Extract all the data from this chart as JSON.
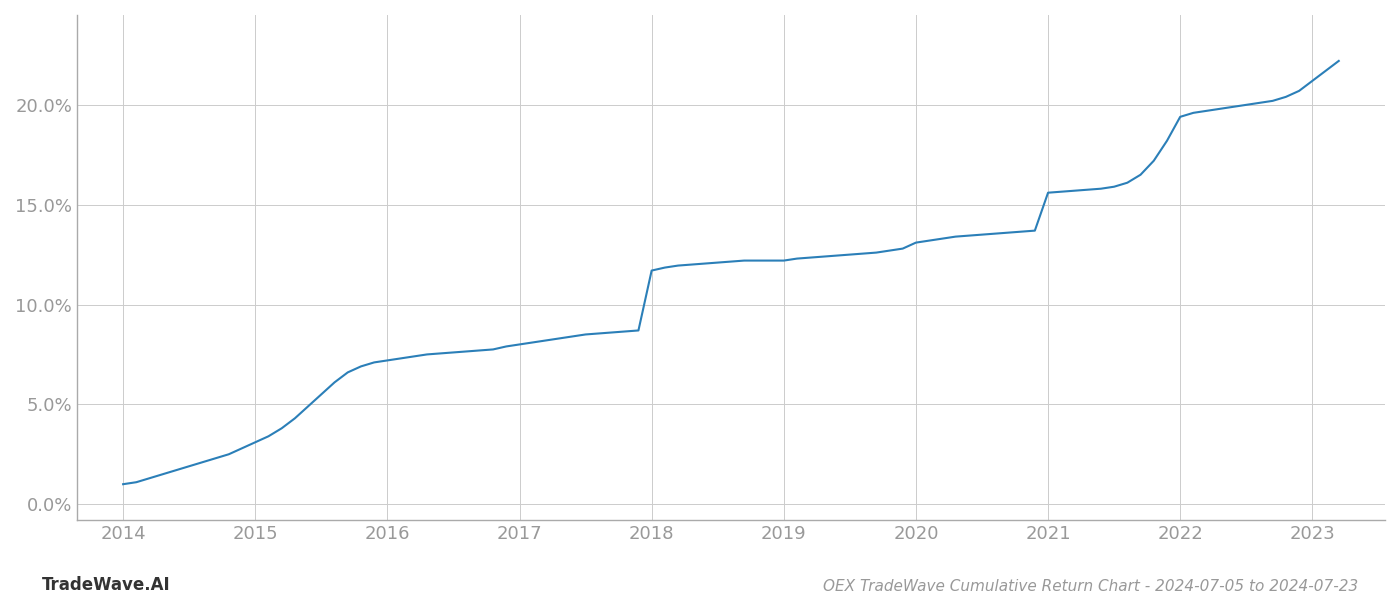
{
  "title": "OEX TradeWave Cumulative Return Chart - 2024-07-05 to 2024-07-23",
  "watermark": "TradeWave.AI",
  "line_color": "#2b7fb8",
  "background_color": "#ffffff",
  "grid_color": "#cccccc",
  "x_values": [
    2014.0,
    2014.1,
    2014.2,
    2014.3,
    2014.4,
    2014.5,
    2014.6,
    2014.7,
    2014.8,
    2014.9,
    2015.0,
    2015.1,
    2015.2,
    2015.3,
    2015.4,
    2015.5,
    2015.6,
    2015.7,
    2015.8,
    2015.9,
    2016.0,
    2016.1,
    2016.2,
    2016.3,
    2016.4,
    2016.5,
    2016.6,
    2016.7,
    2016.8,
    2016.9,
    2017.0,
    2017.1,
    2017.2,
    2017.3,
    2017.4,
    2017.5,
    2017.6,
    2017.7,
    2017.8,
    2017.9,
    2018.0,
    2018.1,
    2018.2,
    2018.3,
    2018.4,
    2018.5,
    2018.6,
    2018.7,
    2018.8,
    2018.9,
    2019.0,
    2019.1,
    2019.2,
    2019.3,
    2019.4,
    2019.5,
    2019.6,
    2019.7,
    2019.8,
    2019.9,
    2020.0,
    2020.1,
    2020.2,
    2020.3,
    2020.4,
    2020.5,
    2020.6,
    2020.7,
    2020.8,
    2020.9,
    2021.0,
    2021.1,
    2021.2,
    2021.3,
    2021.4,
    2021.5,
    2021.6,
    2021.7,
    2021.8,
    2021.9,
    2022.0,
    2022.1,
    2022.2,
    2022.3,
    2022.4,
    2022.5,
    2022.6,
    2022.7,
    2022.8,
    2022.9,
    2023.0,
    2023.1,
    2023.2
  ],
  "y_values": [
    1.0,
    1.1,
    1.3,
    1.5,
    1.7,
    1.9,
    2.1,
    2.3,
    2.5,
    2.8,
    3.1,
    3.4,
    3.8,
    4.3,
    4.9,
    5.5,
    6.1,
    6.6,
    6.9,
    7.1,
    7.2,
    7.3,
    7.4,
    7.5,
    7.55,
    7.6,
    7.65,
    7.7,
    7.75,
    7.9,
    8.0,
    8.1,
    8.2,
    8.3,
    8.4,
    8.5,
    8.55,
    8.6,
    8.65,
    8.7,
    11.7,
    11.85,
    11.95,
    12.0,
    12.05,
    12.1,
    12.15,
    12.2,
    12.2,
    12.2,
    12.2,
    12.3,
    12.35,
    12.4,
    12.45,
    12.5,
    12.55,
    12.6,
    12.7,
    12.8,
    13.1,
    13.2,
    13.3,
    13.4,
    13.45,
    13.5,
    13.55,
    13.6,
    13.65,
    13.7,
    15.6,
    15.65,
    15.7,
    15.75,
    15.8,
    15.9,
    16.1,
    16.5,
    17.2,
    18.2,
    19.4,
    19.6,
    19.7,
    19.8,
    19.9,
    20.0,
    20.1,
    20.2,
    20.4,
    20.7,
    21.2,
    21.7,
    22.2
  ],
  "xlim": [
    2013.65,
    2023.55
  ],
  "ylim": [
    -0.8,
    24.5
  ],
  "yticks": [
    0.0,
    5.0,
    10.0,
    15.0,
    20.0
  ],
  "ytick_labels": [
    "0.0%",
    "5.0%",
    "10.0%",
    "15.0%",
    "20.0%"
  ],
  "xticks": [
    2014,
    2015,
    2016,
    2017,
    2018,
    2019,
    2020,
    2021,
    2022,
    2023
  ],
  "line_width": 1.5,
  "tick_label_color": "#999999",
  "spine_color": "#aaaaaa",
  "title_color": "#999999",
  "watermark_color": "#333333",
  "title_fontsize": 11,
  "watermark_fontsize": 12,
  "tick_fontsize": 13
}
